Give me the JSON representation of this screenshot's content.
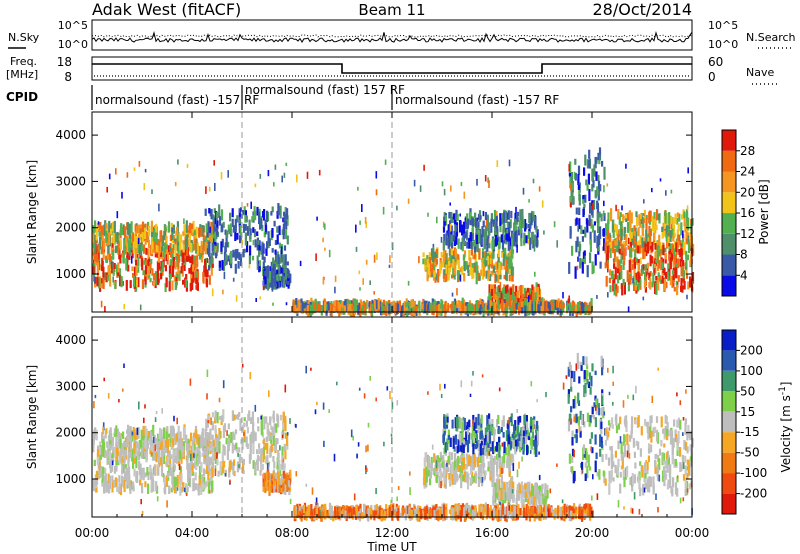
{
  "header": {
    "station": "Adak West (fitACF)",
    "beam": "Beam 11",
    "date": "28/Oct/2014"
  },
  "noise_panel": {
    "left_label": "N.Sky",
    "right_label": "N.Search",
    "left_ticks": [
      "10^5",
      "10^0"
    ],
    "right_ticks": [
      "10^5",
      "10^0"
    ]
  },
  "freq_panel": {
    "left_label_1": "Freq.",
    "left_label_2": "[MHz]",
    "left_ticks": [
      "18",
      "8"
    ],
    "right_label": "Nave",
    "right_ticks": [
      "60",
      "0"
    ],
    "freq_steps": [
      {
        "start_hour": 0,
        "end_hour": 10,
        "level": "high"
      },
      {
        "start_hour": 10,
        "end_hour": 18,
        "level": "low"
      },
      {
        "start_hour": 18,
        "end_hour": 24,
        "level": "high"
      }
    ]
  },
  "cpid_panel": {
    "label": "CPID",
    "segments": [
      {
        "start_hour": 0,
        "end_hour": 6,
        "text": "normalsound (fast) -157 RF"
      },
      {
        "start_hour": 6,
        "end_hour": 12,
        "text": "normalsound (fast) 157 RF"
      },
      {
        "start_hour": 12,
        "end_hour": 24,
        "text": "normalsound (fast) -157 RF"
      }
    ]
  },
  "chart_data": [
    {
      "type": "heatmap",
      "parameter": "Power",
      "ylabel": "Slant Range [km]",
      "xlim_hours": [
        0,
        24
      ],
      "ylim": [
        180,
        4500
      ],
      "yticks": [
        1000,
        2000,
        3000,
        4000
      ],
      "colorbar_label": "Power [dB]",
      "colorbar_ticks": [
        "4",
        "8",
        "12",
        "16",
        "20",
        "24",
        "28"
      ],
      "colorbar_colors": [
        "#0a0ae6",
        "#3a5aa8",
        "#4f8f6a",
        "#53b050",
        "#f2c318",
        "#f59622",
        "#f06a12",
        "#e01a0a"
      ],
      "dashed_boundaries_hours": [
        6,
        12
      ],
      "regions": [
        {
          "t0": 0.0,
          "t1": 4.8,
          "r0": 700,
          "r1": 1600,
          "level": "high"
        },
        {
          "t0": 0.0,
          "t1": 5.0,
          "r0": 1500,
          "r1": 2050,
          "level": "mid"
        },
        {
          "t0": 4.5,
          "t1": 7.8,
          "r0": 1100,
          "r1": 2400,
          "level": "low"
        },
        {
          "t0": 6.8,
          "t1": 7.9,
          "r0": 750,
          "r1": 1100,
          "level": "low"
        },
        {
          "t0": 13.2,
          "t1": 16.8,
          "r0": 900,
          "r1": 1500,
          "level": "mid"
        },
        {
          "t0": 14.0,
          "t1": 17.8,
          "r0": 1600,
          "r1": 2300,
          "level": "low"
        },
        {
          "t0": 15.8,
          "t1": 17.9,
          "r0": 350,
          "r1": 700,
          "level": "high"
        },
        {
          "t0": 19.0,
          "t1": 20.5,
          "r0": 1000,
          "r1": 3600,
          "level": "low"
        },
        {
          "t0": 20.5,
          "t1": 24.0,
          "r0": 1500,
          "r1": 2300,
          "level": "mid"
        },
        {
          "t0": 20.5,
          "t1": 24.0,
          "r0": 650,
          "r1": 1600,
          "level": "high"
        },
        {
          "t0": 8.0,
          "t1": 20.0,
          "r0": 200,
          "r1": 360,
          "level": "ground"
        }
      ]
    },
    {
      "type": "heatmap",
      "parameter": "Velocity",
      "ylabel": "Slant Range [km]",
      "xlabel": "Time UT",
      "xlim_hours": [
        0,
        24
      ],
      "xticks": [
        "00:00",
        "04:00",
        "08:00",
        "12:00",
        "16:00",
        "20:00",
        "00:00"
      ],
      "ylim": [
        180,
        4500
      ],
      "yticks": [
        1000,
        2000,
        3000,
        4000
      ],
      "colorbar_label": "Velocity [m s^-1]",
      "colorbar_ticks": [
        "200",
        "100",
        "50",
        "15",
        "-15",
        "-50",
        "-100",
        "-200"
      ],
      "colorbar_colors": [
        "#0a1ec8",
        "#2a5ab0",
        "#3e9a6a",
        "#7ed04a",
        "#bebebe",
        "#f5a623",
        "#f07a14",
        "#f04a10",
        "#e01a0a"
      ],
      "dashed_boundaries_hours": [
        6,
        12
      ],
      "regions": [
        {
          "t0": 0.0,
          "t1": 4.8,
          "r0": 750,
          "r1": 1600,
          "level": "ground"
        },
        {
          "t0": 0.0,
          "t1": 5.0,
          "r0": 1500,
          "r1": 2050,
          "level": "ground"
        },
        {
          "t0": 4.5,
          "t1": 7.8,
          "r0": 1100,
          "r1": 2400,
          "level": "ground"
        },
        {
          "t0": 6.8,
          "t1": 7.9,
          "r0": 750,
          "r1": 1100,
          "level": "negative"
        },
        {
          "t0": 13.2,
          "t1": 16.8,
          "r0": 900,
          "r1": 1500,
          "level": "ground"
        },
        {
          "t0": 14.0,
          "t1": 17.8,
          "r0": 1600,
          "r1": 2300,
          "level": "positive"
        },
        {
          "t0": 16.0,
          "t1": 18.2,
          "r0": 500,
          "r1": 850,
          "level": "ground"
        },
        {
          "t0": 19.0,
          "t1": 20.5,
          "r0": 1000,
          "r1": 3600,
          "level": "positive"
        },
        {
          "t0": 20.5,
          "t1": 24.0,
          "r0": 700,
          "r1": 2300,
          "level": "ground"
        },
        {
          "t0": 8.0,
          "t1": 20.0,
          "r0": 200,
          "r1": 360,
          "level": "negative"
        }
      ]
    }
  ]
}
